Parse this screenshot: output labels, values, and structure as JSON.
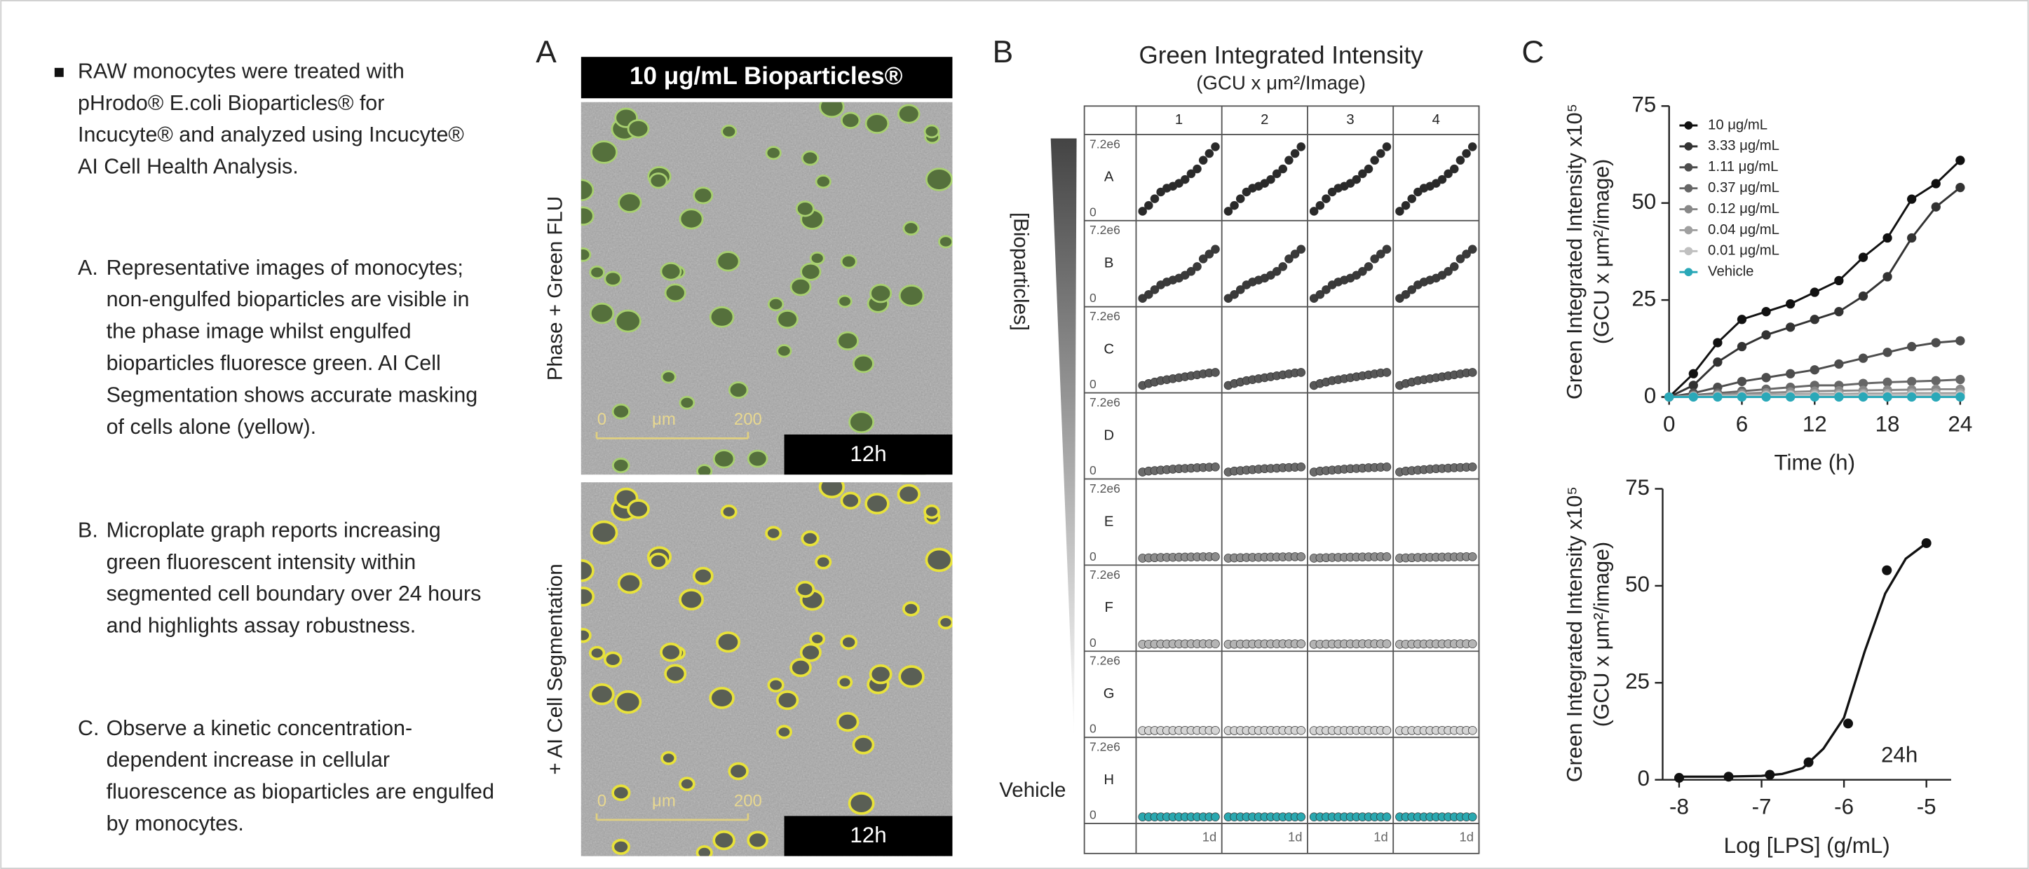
{
  "text": {
    "bullets": [
      {
        "lines": [
          "RAW monocytes were treated with",
          "pHrodo® E.coli Bioparticles® for",
          "Incucyte® and analyzed using Incucyte®",
          "AI Cell Health Analysis."
        ]
      },
      {
        "marker": "A.",
        "lines": [
          "Representative images of monocytes;",
          "non-engulfed bioparticles are visible in",
          "the phase image whilst engulfed",
          "bioparticles fluoresce green. AI Cell",
          "Segmentation shows accurate masking",
          "of cells alone (yellow)."
        ]
      },
      {
        "marker": "B.",
        "lines": [
          "Microplate graph reports increasing",
          "green fluorescent intensity within",
          "segmented cell boundary over 24 hours",
          "and highlights assay robustness."
        ]
      },
      {
        "marker": "C.",
        "lines": [
          "Observe a kinetic concentration-",
          "dependent increase in cellular",
          "fluorescence as bioparticles are engulfed",
          "by monocytes."
        ]
      }
    ]
  },
  "panel_a": {
    "letter": "A",
    "header": "10 μg/mL Bioparticles®",
    "images": [
      {
        "label": "Phase + Green FLU",
        "time": "12h",
        "scale": [
          "0",
          "μm",
          "200"
        ]
      },
      {
        "label": "+ AI Cell Segmentation",
        "time": "12h",
        "scale": [
          "0",
          "μm",
          "200"
        ]
      }
    ]
  },
  "chart_data": [
    {
      "type": "plate",
      "letter": "B",
      "title": "Green Integrated Intensity",
      "subtitle": "(GCU x μm²/Image)",
      "axis_label": "[Bioparticles]",
      "bottom_label": "Vehicle",
      "x_label": "1d",
      "columns": [
        "1",
        "2",
        "3",
        "4"
      ],
      "ylim": [
        0,
        7200000
      ],
      "yticks": [
        0,
        {
          "value": 7200000,
          "label": "7.2e6"
        }
      ],
      "rows": [
        {
          "name": "A",
          "color": "#2a2a2a",
          "values": [
            300000,
            900000,
            1600000,
            2300000,
            2700000,
            2900000,
            3200000,
            3600000,
            4200000,
            4700000,
            5600000,
            6300000,
            7000000
          ]
        },
        {
          "name": "B",
          "color": "#3a3a3a",
          "values": [
            200000,
            600000,
            1100000,
            1600000,
            1900000,
            2100000,
            2300000,
            2600000,
            3000000,
            3500000,
            4300000,
            4800000,
            5300000
          ]
        },
        {
          "name": "C",
          "color": "#575757",
          "values": [
            100000,
            300000,
            450000,
            600000,
            700000,
            800000,
            900000,
            1000000,
            1100000,
            1200000,
            1300000,
            1400000,
            1450000
          ]
        },
        {
          "name": "D",
          "color": "#6a6a6a",
          "values": [
            50000,
            150000,
            200000,
            250000,
            300000,
            350000,
            400000,
            420000,
            450000,
            500000,
            520000,
            550000,
            580000
          ]
        },
        {
          "name": "E",
          "color": "#8c8c8c",
          "values": [
            50000,
            80000,
            100000,
            120000,
            130000,
            140000,
            150000,
            160000,
            170000,
            180000,
            190000,
            200000,
            200000
          ]
        },
        {
          "name": "F",
          "color": "#b4b4b4",
          "values": [
            50000,
            60000,
            70000,
            80000,
            80000,
            90000,
            90000,
            90000,
            100000,
            100000,
            100000,
            100000,
            100000
          ]
        },
        {
          "name": "G",
          "color": "#d4d4d4",
          "values": [
            30000,
            30000,
            40000,
            40000,
            40000,
            40000,
            50000,
            50000,
            50000,
            50000,
            50000,
            50000,
            50000
          ]
        },
        {
          "name": "H",
          "color": "#2aa8b0",
          "values": [
            10000,
            10000,
            10000,
            10000,
            10000,
            10000,
            10000,
            10000,
            10000,
            10000,
            10000,
            10000,
            10000
          ]
        }
      ]
    },
    {
      "type": "line",
      "letter": "C",
      "xlabel": "Time (h)",
      "ylabel": [
        "Green Integrated Intensity x10⁵",
        "(GCU x μm²/image)"
      ],
      "x": [
        0,
        2,
        4,
        6,
        8,
        10,
        12,
        14,
        16,
        18,
        20,
        22,
        24
      ],
      "xlim": [
        0,
        24
      ],
      "xticks": [
        0,
        6,
        12,
        18,
        24
      ],
      "ylim": [
        0,
        75
      ],
      "yticks": [
        0,
        25,
        50,
        75
      ],
      "series": [
        {
          "name": "10 μg/mL",
          "color": "#111111",
          "values": [
            0,
            6,
            14,
            20,
            22,
            24,
            27,
            30,
            36,
            41,
            51,
            55,
            61
          ]
        },
        {
          "name": "3.33 μg/mL",
          "color": "#333333",
          "values": [
            0,
            3,
            9,
            13,
            16,
            18,
            20,
            22,
            26,
            31,
            41,
            49,
            54
          ]
        },
        {
          "name": "1.11 μg/mL",
          "color": "#4d4d4d",
          "values": [
            0,
            1,
            2.5,
            4,
            5,
            6,
            7,
            8.5,
            10,
            11.5,
            13,
            14,
            14.5
          ]
        },
        {
          "name": "0.37 μg/mL",
          "color": "#666666",
          "values": [
            0,
            0.5,
            1,
            1.5,
            2,
            2.5,
            3,
            3,
            3.5,
            3.8,
            4,
            4.2,
            4.5
          ]
        },
        {
          "name": "0.12 μg/mL",
          "color": "#888888",
          "values": [
            0,
            0.3,
            0.6,
            0.9,
            1.1,
            1.3,
            1.5,
            1.6,
            1.7,
            1.8,
            1.9,
            2,
            2
          ]
        },
        {
          "name": "0.04 μg/mL",
          "color": "#a0a0a0",
          "values": [
            0,
            0.2,
            0.4,
            0.5,
            0.6,
            0.7,
            0.8,
            0.8,
            0.9,
            0.9,
            1,
            1,
            1
          ]
        },
        {
          "name": "0.01 μg/mL",
          "color": "#c0c0c0",
          "values": [
            0,
            0.1,
            0.2,
            0.3,
            0.3,
            0.4,
            0.4,
            0.4,
            0.5,
            0.5,
            0.5,
            0.5,
            0.5
          ]
        },
        {
          "name": "Vehicle",
          "color": "#2aa8b8",
          "values": [
            0,
            0,
            0,
            0,
            0,
            0,
            0,
            0,
            0,
            0,
            0,
            0,
            0
          ]
        }
      ]
    },
    {
      "type": "scatter",
      "xlabel": "Log [LPS] (g/mL)",
      "ylabel": [
        "Green Integrated Intensity x10⁵",
        "(GCU x μm²/image)"
      ],
      "annotation": "24h",
      "color": "#111111",
      "x": [
        -8,
        -7.4,
        -6.9,
        -6.43,
        -5.95,
        -5.48,
        -5
      ],
      "values": [
        0.5,
        0.8,
        1.3,
        4.5,
        14.5,
        54,
        61
      ],
      "fit": {
        "x": [
          -8,
          -7.5,
          -7,
          -6.75,
          -6.5,
          -6.25,
          -6,
          -5.75,
          -5.5,
          -5.25,
          -5
        ],
        "values": [
          0.8,
          0.8,
          1,
          1.5,
          3,
          8,
          16,
          33,
          48,
          57,
          61
        ]
      },
      "xlim": [
        -8.2,
        -4.7
      ],
      "xticks": [
        -8,
        -7,
        -6,
        -5
      ],
      "ylim": [
        0,
        75
      ],
      "yticks": [
        0,
        25,
        50,
        75
      ]
    }
  ]
}
